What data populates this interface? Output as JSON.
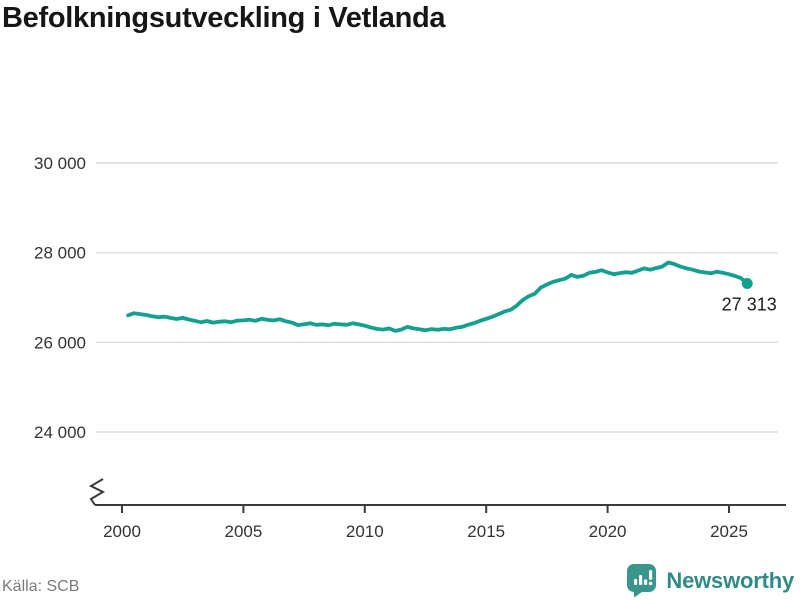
{
  "title": "Befolkningsutveckling i Vetlanda",
  "source": "Källa: SCB",
  "branding": {
    "name": "Newsworthy",
    "icon": "bar-chart-speech-bubble",
    "color": "#2f8b84",
    "icon_color": "#3a958c"
  },
  "chart_data": {
    "type": "line",
    "title": "Befolkningsutveckling i Vetlanda",
    "series_name": "Folkmängd i Vetlanda",
    "xlabel": "",
    "ylabel": "",
    "x_unit": "år (kvartalsdata)",
    "x_start": 2000.25,
    "x_step": 0.25,
    "x_end": 2025.75,
    "xlim": [
      1998.9,
      2027.4
    ],
    "ylim": [
      24000,
      30000
    ],
    "axis_break": true,
    "grid": "horizontal",
    "line_color": "#14a08e",
    "xticks": [
      2000,
      2005,
      2010,
      2015,
      2020,
      2025
    ],
    "yticks": [
      {
        "value": 30000,
        "label": "30 000"
      },
      {
        "value": 28000,
        "label": "28 000"
      },
      {
        "value": 26000,
        "label": "26 000"
      },
      {
        "value": 24000,
        "label": "24 000"
      }
    ],
    "values": [
      26600,
      26650,
      26630,
      26610,
      26580,
      26560,
      26575,
      26545,
      26520,
      26545,
      26510,
      26480,
      26450,
      26475,
      26440,
      26460,
      26470,
      26450,
      26485,
      26490,
      26505,
      26480,
      26525,
      26500,
      26490,
      26515,
      26470,
      26440,
      26385,
      26405,
      26425,
      26390,
      26400,
      26380,
      26415,
      26400,
      26390,
      26425,
      26400,
      26370,
      26330,
      26300,
      26285,
      26310,
      26255,
      26285,
      26345,
      26310,
      26290,
      26270,
      26295,
      26280,
      26300,
      26290,
      26325,
      26345,
      26390,
      26430,
      26480,
      26525,
      26570,
      26625,
      26685,
      26725,
      26815,
      26940,
      27030,
      27085,
      27220,
      27290,
      27350,
      27385,
      27420,
      27505,
      27460,
      27485,
      27550,
      27570,
      27610,
      27560,
      27520,
      27545,
      27565,
      27550,
      27600,
      27650,
      27620,
      27655,
      27690,
      27780,
      27745,
      27690,
      27650,
      27620,
      27580,
      27560,
      27540,
      27575,
      27550,
      27520,
      27480,
      27430,
      27313
    ],
    "annotation": {
      "text": "27 313",
      "value": 27313,
      "position": "below-right-of-last-point"
    },
    "last_point_marker": "filled-dot"
  }
}
